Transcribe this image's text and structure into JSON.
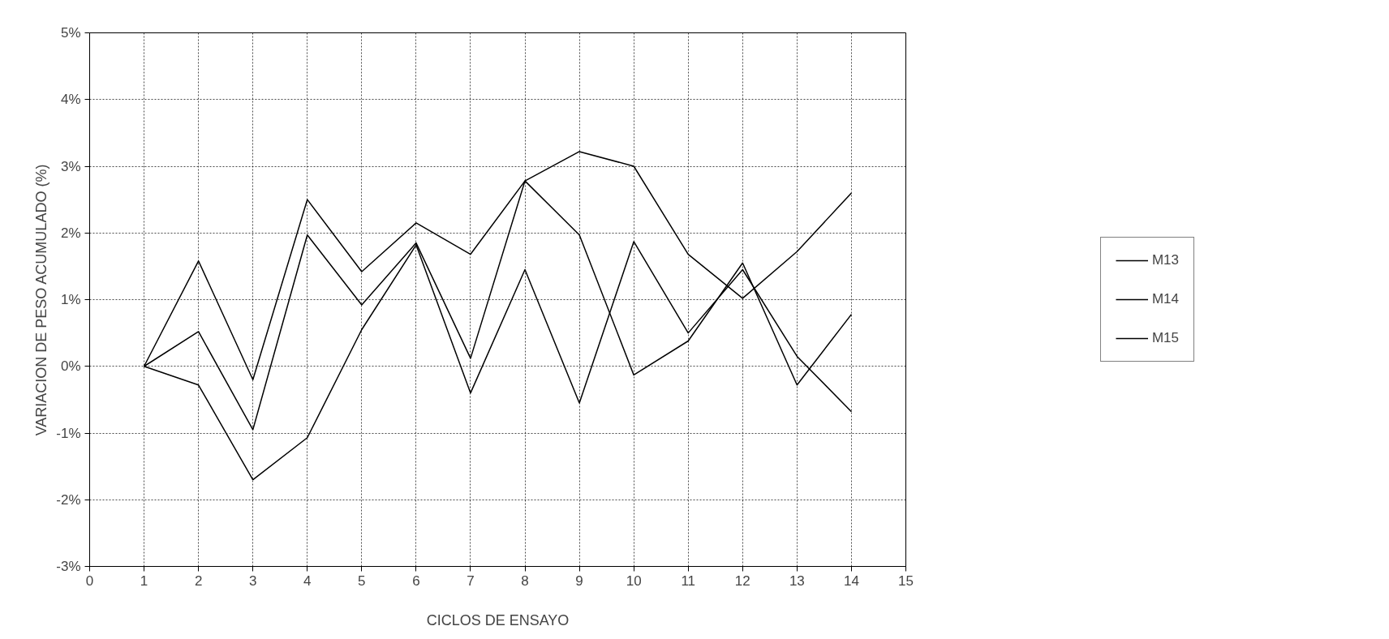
{
  "chart_data": {
    "type": "line",
    "xlabel": "CICLOS DE ENSAYO",
    "ylabel": "VARIACION DE PESO ACUMULADO (%)",
    "x": [
      1,
      2,
      3,
      4,
      5,
      6,
      7,
      8,
      9,
      10,
      11,
      12,
      13,
      14
    ],
    "series": [
      {
        "name": "M13",
        "color": "#000000",
        "values": [
          0,
          1.58,
          -0.2,
          2.5,
          1.42,
          2.15,
          1.68,
          2.78,
          3.22,
          3.0,
          1.68,
          1.02,
          1.72,
          2.6
        ]
      },
      {
        "name": "M14",
        "color": "#000000",
        "values": [
          0,
          0.52,
          -0.95,
          1.97,
          0.92,
          1.85,
          0.12,
          2.78,
          1.97,
          -0.13,
          0.38,
          1.55,
          -0.28,
          0.78
        ]
      },
      {
        "name": "M15",
        "color": "#000000",
        "values": [
          0,
          -0.28,
          -1.7,
          -1.07,
          0.55,
          1.82,
          -0.4,
          1.45,
          -0.55,
          1.87,
          0.5,
          1.45,
          0.15,
          -0.68
        ]
      }
    ],
    "xlim": [
      0,
      15
    ],
    "xticks": [
      0,
      1,
      2,
      3,
      4,
      5,
      6,
      7,
      8,
      9,
      10,
      11,
      12,
      13,
      14,
      15
    ],
    "ylim": [
      -3,
      5
    ],
    "yticks": [
      {
        "value": -3,
        "label": "-3%"
      },
      {
        "value": -2,
        "label": "-2%"
      },
      {
        "value": -1,
        "label": "-1%"
      },
      {
        "value": 0,
        "label": "0%"
      },
      {
        "value": 1,
        "label": "1%"
      },
      {
        "value": 2,
        "label": "2%"
      },
      {
        "value": 3,
        "label": "3%"
      },
      {
        "value": 4,
        "label": "4%"
      },
      {
        "value": 5,
        "label": "5%"
      }
    ],
    "grid": true,
    "legend": "right",
    "marker": "none",
    "line_style": "solid"
  }
}
